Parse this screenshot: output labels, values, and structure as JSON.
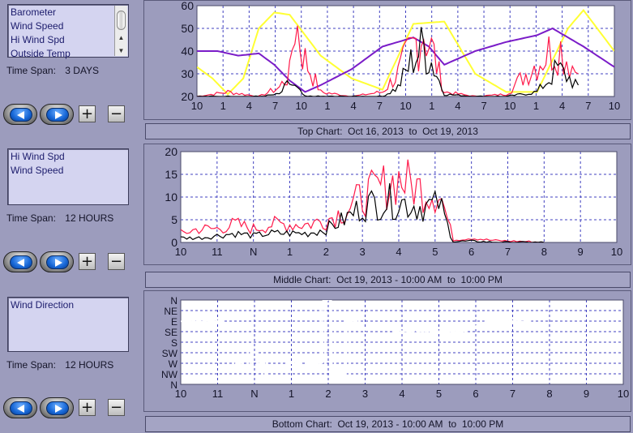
{
  "colors": {
    "background": "#9c9cbd",
    "plot_area": "#ffffff",
    "grid": "#4040c0",
    "barometer": "#ffff33",
    "wind_speed": "#000000",
    "hi_wind_spd": "#ff1a4a",
    "outside_temp": "#7a1cc8",
    "wind_direction": "#ffffff"
  },
  "top": {
    "list_items": [
      "Barometer",
      "Wind Speed",
      "Hi Wind Spd",
      "Outside Temp"
    ],
    "time_span_label": "Time Span:",
    "time_span_value": "3 DAYS",
    "chart_label": "Top Chart:  Oct 16, 2013  to  Oct 19, 2013"
  },
  "middle": {
    "list_items": [
      "Hi Wind Spd",
      "Wind Speed"
    ],
    "time_span_label": "Time Span:",
    "time_span_value": "12 HOURS",
    "chart_label": "Middle Chart:  Oct 19, 2013 - 10:00 AM  to  10:00 PM"
  },
  "bottom": {
    "list_items": [
      "Wind Direction"
    ],
    "time_span_label": "Time Span:",
    "time_span_value": "12 HOURS",
    "chart_label": "Bottom Chart:  Oct 19, 2013 - 10:00 AM  to  10:00 PM"
  },
  "buttons": {
    "prev_icon": "left-arrow-icon",
    "next_icon": "right-arrow-icon",
    "zoom_in_label": "+",
    "zoom_out_label": "−"
  },
  "chart_data": [
    {
      "type": "line",
      "x_tick_labels": [
        "10",
        "1",
        "4",
        "7",
        "10",
        "1",
        "4",
        "7",
        "10",
        "1",
        "4",
        "7",
        "10",
        "1",
        "4",
        "7",
        "10"
      ],
      "y_tick_labels": [
        "20",
        "30",
        "40",
        "50",
        "60"
      ],
      "ylim": [
        20,
        60
      ],
      "grid": true,
      "x_hours": [
        0,
        6,
        12,
        18,
        24,
        30,
        36,
        42,
        48,
        54,
        60,
        66,
        72,
        78
      ],
      "series": [
        {
          "name": "Barometer",
          "color": "#ffff33",
          "values": [
            33,
            28,
            21,
            28,
            50,
            57,
            56,
            38,
            28,
            23,
            52,
            53,
            30,
            22,
            22,
            50,
            58,
            40
          ],
          "x": [
            0,
            3,
            6,
            9,
            12,
            15,
            18,
            24,
            30,
            36,
            42,
            48,
            54,
            60,
            66,
            72,
            75,
            81
          ]
        },
        {
          "name": "Outside Temp",
          "color": "#7a1cc8",
          "values": [
            40,
            40,
            38,
            39,
            34,
            27,
            22,
            25,
            32,
            42,
            46,
            42,
            34,
            40,
            44,
            47,
            50,
            42,
            33
          ],
          "x": [
            0,
            4,
            8,
            12,
            15,
            18,
            21,
            24,
            30,
            36,
            42,
            45,
            48,
            54,
            60,
            66,
            69,
            75,
            81
          ]
        },
        {
          "name": "Hi Wind Spd",
          "color": "#ff1a4a",
          "values": [
            20,
            22,
            20,
            24,
            30,
            54,
            36,
            22,
            20,
            22,
            30,
            42,
            50,
            38,
            22,
            20,
            21,
            35,
            43,
            30
          ],
          "x": [
            0,
            6,
            12,
            16,
            18,
            19,
            21,
            24,
            30,
            36,
            39,
            42,
            44,
            46,
            48,
            54,
            60,
            66,
            70,
            74
          ]
        },
        {
          "name": "Wind Speed",
          "color": "#000000",
          "values": [
            20,
            20,
            20,
            21,
            26,
            24,
            20,
            20,
            20,
            20,
            24,
            37,
            42,
            33,
            21,
            20,
            20,
            22,
            32,
            25
          ],
          "x": [
            0,
            6,
            12,
            16,
            18,
            19,
            21,
            24,
            30,
            36,
            39,
            42,
            44,
            46,
            48,
            54,
            60,
            66,
            70,
            74
          ]
        }
      ]
    },
    {
      "type": "line",
      "x_tick_labels": [
        "10",
        "11",
        "N",
        "1",
        "2",
        "3",
        "4",
        "5",
        "6",
        "7",
        "8",
        "9",
        "10"
      ],
      "y_tick_labels": [
        "0",
        "5",
        "10",
        "15",
        "20"
      ],
      "ylim": [
        0,
        20
      ],
      "grid": true,
      "series": [
        {
          "name": "Hi Wind Spd",
          "color": "#ff1a4a",
          "x": [
            0,
            0.5,
            1,
            1.5,
            2,
            2.5,
            3,
            3.5,
            4,
            4.5,
            5,
            5.5,
            6,
            6.5,
            7,
            7.1,
            7.5,
            8,
            8.5,
            9,
            9.5,
            10
          ],
          "values": [
            2,
            3,
            3,
            4,
            3,
            4,
            4,
            4,
            5,
            7,
            10,
            12,
            14,
            12,
            11,
            12,
            0.5,
            1,
            0.5,
            0.3,
            0.2,
            0
          ]
        },
        {
          "name": "Wind Speed",
          "color": "#000000",
          "x": [
            0,
            0.5,
            1,
            1.5,
            2,
            2.5,
            3,
            3.5,
            4,
            4.5,
            5,
            5.5,
            6,
            6.5,
            7,
            7.1,
            7.5,
            8,
            8.5,
            9,
            9.5,
            10
          ],
          "values": [
            1,
            1,
            1.5,
            2,
            1.5,
            2,
            2,
            2,
            3,
            5,
            8,
            9,
            9,
            8,
            8,
            9,
            0.2,
            0.3,
            0.1,
            0,
            0,
            0
          ]
        }
      ]
    },
    {
      "type": "line",
      "x_tick_labels": [
        "10",
        "11",
        "N",
        "1",
        "2",
        "3",
        "4",
        "5",
        "6",
        "7",
        "8",
        "9",
        "10"
      ],
      "y_tick_labels": [
        "N",
        "NW",
        "W",
        "SW",
        "S",
        "SE",
        "E",
        "NE",
        "N"
      ],
      "ylim": [
        0,
        8
      ],
      "grid": true,
      "series": [
        {
          "name": "Wind Direction",
          "color": "#ffffff",
          "x": [
            0,
            0.9,
            1.1,
            1.2,
            1.4,
            1.6,
            1.8,
            2.0,
            2.2,
            2.4,
            2.5,
            2.8,
            3.0,
            3.2,
            3.3,
            3.5,
            3.8,
            3.9,
            4.0,
            4.2,
            4.4,
            4.6,
            5.0,
            5.5,
            6.0,
            6.5,
            7.0,
            7.5,
            8.0,
            8.5,
            9.0,
            9.5
          ],
          "values": [
            6,
            6,
            6,
            1.5,
            1.5,
            2,
            1.5,
            3,
            2,
            0.3,
            0.3,
            0.3,
            2,
            2,
            0.5,
            2,
            2,
            8,
            8,
            1,
            1,
            6,
            5.2,
            5.3,
            5,
            5.1,
            5.0,
            5.0,
            5.5,
            6,
            6,
            6
          ]
        }
      ]
    }
  ]
}
